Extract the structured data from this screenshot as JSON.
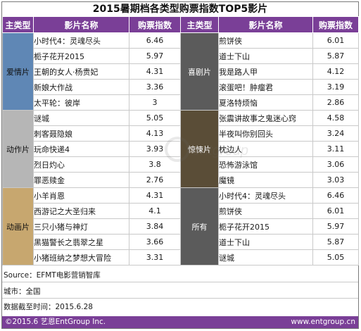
{
  "title": "2015暑期档各类型购票指数TOP5影片",
  "headers": [
    "主类型",
    "影片名称",
    "购票指数",
    "主类型",
    "影片名称",
    "购票指数"
  ],
  "chart_data": {
    "type": "table",
    "title": "2015暑期档各类型购票指数TOP5影片",
    "columns": [
      "主类型",
      "影片名称",
      "购票指数"
    ],
    "groups": [
      {
        "category": "爱情片",
        "rows": [
          {
            "movie": "小时代4：灵魂尽头",
            "index": "6.46"
          },
          {
            "movie": "栀子花开2015",
            "index": "5.97"
          },
          {
            "movie": "王朝的女人·杨贵妃",
            "index": "4.31"
          },
          {
            "movie": "新娘大作战",
            "index": "3.36"
          },
          {
            "movie": "太平轮：彼岸",
            "index": "3"
          }
        ]
      },
      {
        "category": "喜剧片",
        "rows": [
          {
            "movie": "煎饼侠",
            "index": "6.01"
          },
          {
            "movie": "道士下山",
            "index": "5.87"
          },
          {
            "movie": "我是路人甲",
            "index": "4.12"
          },
          {
            "movie": "滚蛋吧！肿瘤君",
            "index": "3.19"
          },
          {
            "movie": "夏洛特烦恼",
            "index": "2.86"
          }
        ]
      },
      {
        "category": "动作片",
        "rows": [
          {
            "movie": "谜城",
            "index": "5.05"
          },
          {
            "movie": "刺客聂隐娘",
            "index": "4.13"
          },
          {
            "movie": "玩命快递4",
            "index": "3.93"
          },
          {
            "movie": "烈日灼心",
            "index": "3.8"
          },
          {
            "movie": "罪恶赎金",
            "index": "2.76"
          }
        ]
      },
      {
        "category": "惊悚片",
        "rows": [
          {
            "movie": "张震讲故事之鬼迷心窍",
            "index": "4.58"
          },
          {
            "movie": "半夜叫你别回头",
            "index": "3.24"
          },
          {
            "movie": "枕边人",
            "index": "3.11"
          },
          {
            "movie": "恐怖游泳馆",
            "index": "3.06"
          },
          {
            "movie": "魔镜",
            "index": "3.03"
          }
        ]
      },
      {
        "category": "动画片",
        "rows": [
          {
            "movie": "小羊肖恩",
            "index": "4.31"
          },
          {
            "movie": "西游记之大圣归来",
            "index": "4.1"
          },
          {
            "movie": "三只小猪与神灯",
            "index": "3.84"
          },
          {
            "movie": "黑猫警长之翡翠之星",
            "index": "3.66"
          },
          {
            "movie": "小猪班纳之梦想大冒险",
            "index": "3.31"
          }
        ]
      },
      {
        "category": "所有",
        "rows": [
          {
            "movie": "小时代4：灵魂尽头",
            "index": "6.46"
          },
          {
            "movie": "煎饼侠",
            "index": "6.01"
          },
          {
            "movie": "栀子花开2015",
            "index": "5.97"
          },
          {
            "movie": "道士下山",
            "index": "5.87"
          },
          {
            "movie": "谜城",
            "index": "5.05"
          }
        ]
      }
    ]
  },
  "category_colors": {
    "header": "#7a3f97",
    "爱情片": "#5f87b5",
    "喜剧片": "#5b5b5b",
    "动作片": "#b6b6b6",
    "惊悚片": "#5a4d37",
    "动画片": "#c7a76f",
    "所有": "#5b5b5b"
  },
  "notes": {
    "source": "Source：EFMT电影营销智库",
    "city": "城市：全国",
    "date": "数据截至时间：2015.6.28"
  },
  "footer": {
    "copyright": "©2015.6 艺恩EntGroup Inc.",
    "url": "www.entgroup.cn"
  },
  "watermark": {
    "text": "entgroup"
  }
}
